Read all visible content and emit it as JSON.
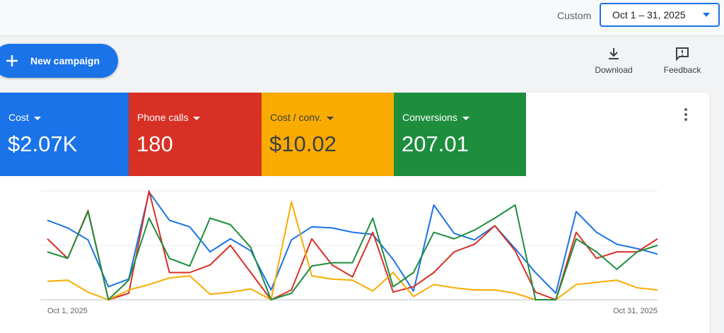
{
  "header": {
    "range_label": "Custom",
    "date_range": "Oct 1 – 31, 2025"
  },
  "toolbar": {
    "new_campaign": "New campaign",
    "download": "Download",
    "feedback": "Feedback"
  },
  "chart_data": {
    "type": "line",
    "categories": [
      "Oct 1, 2025",
      null,
      null,
      null,
      null,
      null,
      null,
      null,
      null,
      null,
      null,
      null,
      null,
      null,
      null,
      null,
      null,
      null,
      null,
      null,
      null,
      null,
      null,
      null,
      null,
      null,
      null,
      null,
      null,
      null,
      "Oct 31, 2025"
    ],
    "ylim": [
      0,
      100
    ],
    "yticks": [
      0,
      50,
      100
    ],
    "grid": true,
    "series": [
      {
        "name": "Cost",
        "total": "$2.07K",
        "color": "#1a73e8",
        "values": [
          73,
          66,
          55,
          12,
          19,
          99,
          73,
          67,
          44,
          56,
          45,
          9,
          55,
          67,
          66,
          62,
          60,
          37,
          8,
          87,
          61,
          55,
          68,
          47,
          25,
          6,
          81,
          62,
          51,
          47,
          42
        ]
      },
      {
        "name": "Phone calls",
        "total": "180",
        "color": "#d93025",
        "values": [
          56,
          38,
          82,
          0,
          6,
          100,
          25,
          25,
          32,
          50,
          25,
          0,
          9,
          56,
          32,
          21,
          62,
          7,
          12,
          25,
          44,
          51,
          68,
          45,
          7,
          0,
          62,
          38,
          44,
          44,
          56
        ]
      },
      {
        "name": "Cost / conv.",
        "total": "$10.02",
        "color": "#f9ab00",
        "values": [
          17,
          18,
          7,
          0,
          9,
          14,
          20,
          22,
          5,
          7,
          10,
          0,
          90,
          22,
          19,
          18,
          8,
          25,
          3,
          14,
          11,
          9,
          9,
          6,
          0,
          0,
          14,
          16,
          18,
          11,
          9
        ]
      },
      {
        "name": "Conversions",
        "total": "207.01",
        "color": "#1e8e3e",
        "values": [
          44,
          38,
          81,
          0,
          18,
          75,
          38,
          31,
          75,
          69,
          48,
          0,
          6,
          31,
          34,
          34,
          75,
          12,
          25,
          62,
          56,
          64,
          75,
          87,
          0,
          0,
          56,
          44,
          28,
          44,
          50
        ]
      }
    ]
  }
}
